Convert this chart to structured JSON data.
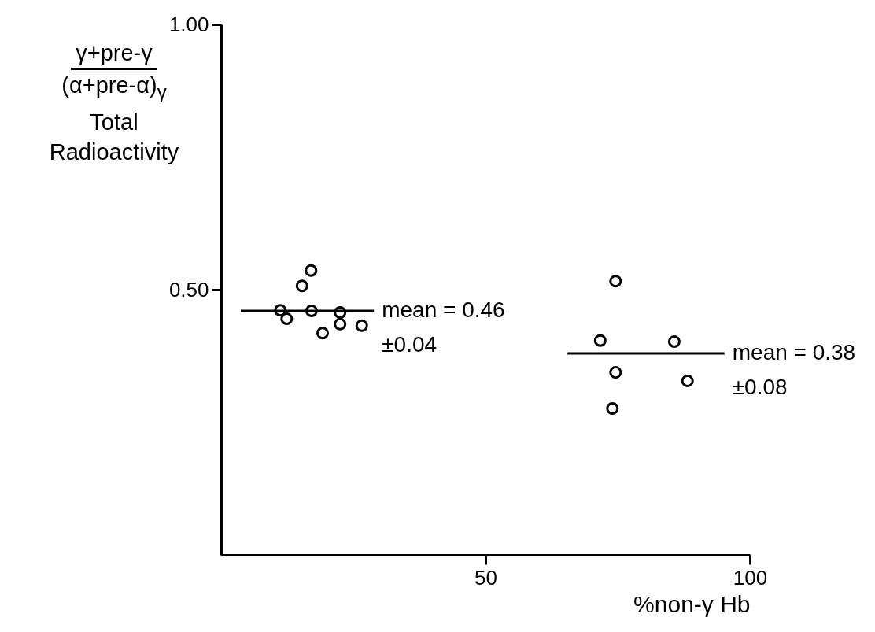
{
  "chart_data": {
    "type": "scatter",
    "xlabel": "%non-γ Hb",
    "ylabel": "γ+pre-γ\n(α+pre-α)$_{γ}$\nTotal\nRadioactivity",
    "xlim": [
      0,
      100
    ],
    "ylim": [
      0,
      1
    ],
    "xticks": [
      50,
      100
    ],
    "yticks": [
      {
        "value": 0.5,
        "label": "0.50"
      },
      {
        "value": 1,
        "label": "1.00"
      }
    ],
    "series": [
      {
        "marker": "circle",
        "color": "#000000",
        "x": [
          17.0,
          15.3,
          11.2,
          12.4,
          17.1,
          22.5,
          22.5,
          19.2,
          26.6,
          74.6,
          71.7,
          85.7,
          74.6,
          88.2,
          74.0
        ],
        "values": [
          0.536,
          0.507,
          0.461,
          0.445,
          0.46,
          0.457,
          0.435,
          0.418,
          0.432,
          0.516,
          0.404,
          0.402,
          0.344,
          0.328,
          0.276
        ]
      },
      {
        "type": "line",
        "color": "#000000",
        "x": [
          3.7,
          28.9
        ],
        "values": [
          0.46,
          0.46
        ]
      },
      {
        "type": "line",
        "color": "#000000",
        "x": [
          65.5,
          95.2
        ],
        "values": [
          0.38,
          0.38
        ]
      }
    ],
    "annotations": [
      {
        "text": "mean = 0.46\n±0.04",
        "x": 28.9,
        "y": 0.46
      },
      {
        "text": "mean = 0.38\n±0.08",
        "x": 95.2,
        "y": 0.38
      }
    ]
  }
}
